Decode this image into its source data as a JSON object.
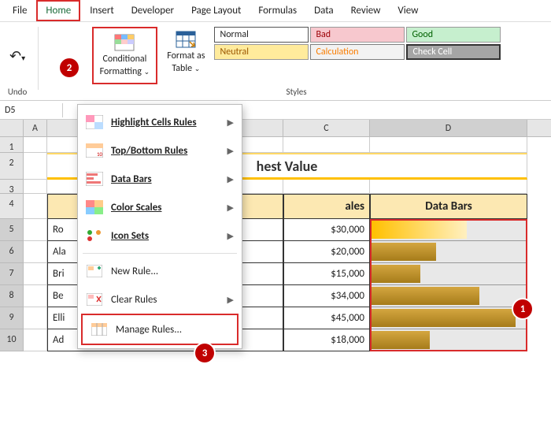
{
  "menubar": {
    "items": [
      "File",
      "Home",
      "Insert",
      "Developer",
      "Page Layout",
      "Formulas",
      "Data",
      "Review",
      "View"
    ],
    "active_index": 1
  },
  "ribbon": {
    "undo_group_label": "Undo",
    "conditional_formatting_label_l1": "Conditional",
    "conditional_formatting_label_l2": "Formatting",
    "format_as_table_label_l1": "Format as",
    "format_as_table_label_l2": "Table",
    "styles_group_label": "Styles",
    "cell_styles": {
      "normal": "Normal",
      "bad": "Bad",
      "good": "Good",
      "neutral": "Neutral",
      "calculation": "Calculation",
      "check_cell": "Check Cell"
    },
    "style_colors": {
      "bad_bg": "#f7c8ce",
      "bad_fg": "#9c0006",
      "good_bg": "#c6efce",
      "good_fg": "#006100",
      "neutral_bg": "#ffeb9c",
      "neutral_fg": "#9c5700",
      "calc_fg": "#fa7d00",
      "check_bg": "#a5a5a5"
    }
  },
  "namebox": {
    "value": "D5"
  },
  "columns": [
    "A",
    "B",
    "C",
    "D"
  ],
  "sheet": {
    "title": "hest Value",
    "headers": {
      "b_partial": "",
      "c": "ales",
      "d": "Data Bars"
    },
    "rows": [
      {
        "rh": 5,
        "b": "Ro",
        "c": "$30,000",
        "bar_pct": 62,
        "first": true
      },
      {
        "rh": 6,
        "b": "Ala",
        "c": "$20,000",
        "bar_pct": 42
      },
      {
        "rh": 7,
        "b": "Bri",
        "c": "$15,000",
        "bar_pct": 32
      },
      {
        "rh": 8,
        "b": "Be",
        "c": "$34,000",
        "bar_pct": 70
      },
      {
        "rh": 9,
        "b": "Elli",
        "c": "$45,000",
        "bar_pct": 94
      },
      {
        "rh": 10,
        "b": "Ad",
        "c": "$18,000",
        "bar_pct": 38
      }
    ],
    "databar_color": "#b8860b",
    "databar_first_color": "#ffc000",
    "header_bg": "#fce8b2"
  },
  "cf_menu": {
    "items": [
      {
        "label": "Highlight Cells Rules",
        "submenu": true,
        "icon": "highlight"
      },
      {
        "label": "Top/Bottom Rules",
        "submenu": true,
        "icon": "topbottom"
      },
      {
        "label": "Data Bars",
        "submenu": true,
        "icon": "databars"
      },
      {
        "label": "Color Scales",
        "submenu": true,
        "icon": "colorscales"
      },
      {
        "label": "Icon Sets",
        "submenu": true,
        "icon": "iconsets"
      }
    ],
    "plain_items": [
      {
        "label": "New Rule...",
        "icon": "new"
      },
      {
        "label": "Clear Rules",
        "icon": "clear",
        "submenu": true
      },
      {
        "label": "Manage Rules...",
        "icon": "manage",
        "highlight": true
      }
    ]
  },
  "callouts": {
    "c1": "1",
    "c2": "2",
    "c3": "3"
  },
  "highlight_color": "#d92b2b"
}
